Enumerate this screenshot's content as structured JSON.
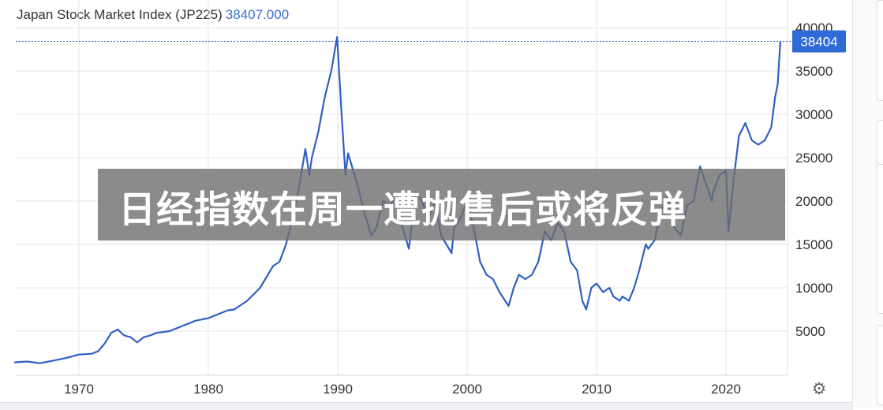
{
  "header": {
    "title": "Japan Stock Market Index (JP225)",
    "current_value": "38407.000"
  },
  "price_tag": "38404",
  "banner": {
    "text": "日经指数在周一遭抛售后或将反弹"
  },
  "settings_icon": "gear-icon",
  "colors": {
    "line": "#2f5fc4",
    "accent": "#3c6fd0",
    "tag": "#2f6bd6",
    "grid": "#e6e6e6"
  },
  "chart_data": {
    "type": "line",
    "title": "Japan Stock Market Index (JP225)",
    "xlabel": "",
    "ylabel": "",
    "xlim": [
      1965,
      2025.3
    ],
    "ylim": [
      0,
      41000
    ],
    "x_ticks": [
      1970,
      1980,
      1990,
      2000,
      2010,
      2020
    ],
    "y_ticks": [
      5000,
      10000,
      15000,
      20000,
      25000,
      30000,
      35000,
      40000
    ],
    "last_value_line": 38404,
    "grid": true,
    "series": [
      {
        "x": [
          1965.0,
          1966.0,
          1967.0,
          1968.0,
          1969.0,
          1970.0,
          1971.0,
          1971.5,
          1972.0,
          1972.5,
          1973.0,
          1973.5,
          1974.0,
          1974.5,
          1975.0,
          1975.5,
          1976.0,
          1977.0,
          1978.0,
          1979.0,
          1980.0,
          1981.0,
          1981.5,
          1982.0,
          1982.5,
          1983.0,
          1984.0,
          1985.0,
          1985.5,
          1986.0,
          1986.5,
          1987.0,
          1987.5,
          1987.8,
          1988.0,
          1988.5,
          1989.0,
          1989.5,
          1989.95,
          1990.3,
          1990.6,
          1990.8,
          1991.0,
          1991.5,
          1992.0,
          1992.6,
          1993.0,
          1993.5,
          1994.0,
          1994.5,
          1995.0,
          1995.5,
          1996.0,
          1996.5,
          1997.0,
          1997.5,
          1998.0,
          1998.8,
          1999.0,
          1999.5,
          2000.0,
          2000.5,
          2001.0,
          2001.5,
          2002.0,
          2002.5,
          2003.2,
          2003.6,
          2004.0,
          2004.5,
          2005.0,
          2005.5,
          2006.0,
          2006.5,
          2007.0,
          2007.5,
          2008.0,
          2008.5,
          2008.9,
          2009.2,
          2009.6,
          2010.0,
          2010.5,
          2011.0,
          2011.3,
          2011.8,
          2012.0,
          2012.5,
          2012.9,
          2013.3,
          2013.8,
          2014.0,
          2014.5,
          2015.0,
          2015.5,
          2016.0,
          2016.5,
          2017.0,
          2017.5,
          2018.0,
          2018.9,
          2019.0,
          2019.5,
          2020.0,
          2020.2,
          2020.6,
          2021.0,
          2021.5,
          2022.0,
          2022.5,
          2023.0,
          2023.5,
          2023.8,
          2024.0,
          2024.2
        ],
        "y": [
          1400,
          1500,
          1300,
          1600,
          1900,
          2300,
          2400,
          2700,
          3600,
          4800,
          5200,
          4500,
          4300,
          3700,
          4300,
          4500,
          4800,
          5000,
          5600,
          6200,
          6500,
          7100,
          7400,
          7500,
          8000,
          8500,
          10000,
          12500,
          13000,
          15000,
          18000,
          21500,
          26000,
          23000,
          25000,
          28000,
          32000,
          35000,
          38915,
          30000,
          23000,
          25500,
          24500,
          22000,
          19000,
          16000,
          17000,
          20000,
          19500,
          20500,
          17000,
          14500,
          21000,
          20000,
          18000,
          20000,
          16000,
          14000,
          17000,
          18000,
          20000,
          17000,
          13000,
          11500,
          11000,
          9500,
          7900,
          10000,
          11500,
          11000,
          11500,
          13000,
          16500,
          15500,
          17500,
          16500,
          13000,
          12000,
          8500,
          7500,
          10000,
          10500,
          9500,
          10000,
          9000,
          8500,
          9000,
          8500,
          10000,
          12000,
          15000,
          14500,
          15500,
          19000,
          20500,
          17000,
          16000,
          19500,
          20000,
          24000,
          20000,
          21000,
          23000,
          23500,
          16500,
          22500,
          27500,
          29000,
          27000,
          26500,
          27000,
          28500,
          32000,
          33500,
          38404
        ]
      }
    ]
  }
}
